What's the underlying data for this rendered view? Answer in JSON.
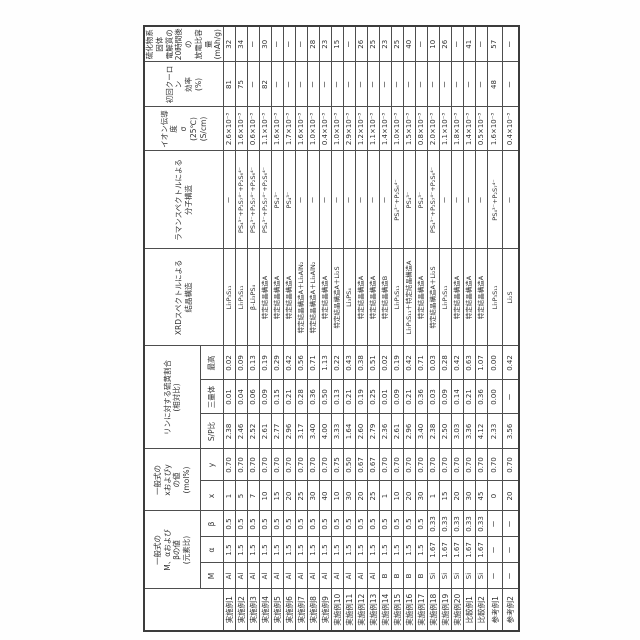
{
  "document": {
    "kind": "patent-table-scan",
    "rotation_deg": -90,
    "background": "#ffffff",
    "line_color": "#4e4e4e"
  },
  "table": {
    "headers": {
      "corner": "",
      "group_m": "一般式の\nM、αおよび\nβの値\n(元素比)",
      "group_xy": "一般式の\nxおよびy\nの値\n(mol%)",
      "group_p": "リンに対する硫黄割合\n(相対比)",
      "group_xrd": "XRDスペクトルによる\n結晶構造",
      "group_raman": "ラマンスペクトルによる\n分子構造",
      "group_sigma": "イオン伝導度\nσ\n(25℃)\n(S/cm)",
      "group_eff": "初回クーロン\n効率\n(%)",
      "group_cap": "硫化物系固体\n電解質の\n20時間後の\n放電比容量\n(mAh/g)",
      "sub": [
        "M",
        "α",
        "β",
        "x",
        "y",
        "S/P比",
        "三量体",
        "最高"
      ]
    },
    "rows": [
      {
        "label": "実施例1",
        "cells": [
          "Al",
          "1.5",
          "0.5",
          "1",
          "0.70",
          "2.38",
          "0.01",
          "0.02",
          "Li₇P₃S₁₁",
          "ー",
          "2.6×10⁻³",
          "81",
          "32"
        ]
      },
      {
        "label": "実施例2",
        "cells": [
          "Al",
          "1.5",
          "0.5",
          "5",
          "0.70",
          "2.46",
          "0.04",
          "0.09",
          "Li₇P₃S₁₁",
          "PS₄³⁻+P₂S₇⁴⁻+P₂S₆⁴⁻",
          "1.6×10⁻³",
          "75",
          "34"
        ]
      },
      {
        "label": "実施例3",
        "cells": [
          "Al",
          "1.5",
          "0.5",
          "7",
          "0.70",
          "2.52",
          "0.06",
          "0.13",
          "β-Li₃PS₄",
          "PS₄³⁻+P₂S₇⁴⁻+P₂S₆⁴⁻",
          "0.6×10⁻³",
          "ー",
          "ー"
        ]
      },
      {
        "label": "実施例4",
        "cells": [
          "Al",
          "1.5",
          "0.5",
          "10",
          "0.70",
          "2.61",
          "0.09",
          "0.19",
          "特定結晶構造A",
          "PS₄³⁻+P₂S₇⁴⁻+P₂S₆⁴⁻",
          "1.1×10⁻³",
          "82",
          "30"
        ]
      },
      {
        "label": "実施例5",
        "cells": [
          "Al",
          "1.5",
          "0.5",
          "15",
          "0.70",
          "2.77",
          "0.15",
          "0.29",
          "特定結晶構造A",
          "PS₄³⁻",
          "1.6×10⁻³",
          "ー",
          "ー"
        ]
      },
      {
        "label": "実施例6",
        "cells": [
          "Al",
          "1.5",
          "0.5",
          "20",
          "0.70",
          "2.96",
          "0.21",
          "0.42",
          "特定結晶構造A",
          "PS₄³⁻",
          "1.7×10⁻³",
          "ー",
          "ー"
        ]
      },
      {
        "label": "実施例7",
        "cells": [
          "Al",
          "1.5",
          "0.5",
          "25",
          "0.70",
          "3.17",
          "0.28",
          "0.56",
          "特定結晶構造A＋Li₃AlN₂",
          "ー",
          "1.6×10⁻³",
          "ー",
          "ー"
        ]
      },
      {
        "label": "実施例8",
        "cells": [
          "Al",
          "1.5",
          "0.5",
          "30",
          "0.70",
          "3.40",
          "0.36",
          "0.71",
          "特定結晶構造A＋Li₃AlN₂",
          "ー",
          "1.0×10⁻³",
          "ー",
          "28"
        ]
      },
      {
        "label": "実施例9",
        "cells": [
          "Al",
          "1.5",
          "0.5",
          "40",
          "0.70",
          "4.00",
          "0.50",
          "1.13",
          "特定結晶構造A",
          "ー",
          "0.4×10⁻³",
          "ー",
          "23"
        ]
      },
      {
        "label": "実施例10",
        "cells": [
          "Al",
          "1.5",
          "0.5",
          "10",
          "0.75",
          "3.33",
          "0.13",
          "0.22",
          "特定結晶構造A＋Li₂S",
          "ー",
          "1.0×10⁻³",
          "ー",
          "15"
        ]
      },
      {
        "label": "実施例11",
        "cells": [
          "Al",
          "1.5",
          "0.5",
          "30",
          "0.50",
          "1.64",
          "0.21",
          "0.43",
          "Li₃PS₄",
          "ー",
          "2.9×10⁻³",
          "ー",
          "ー"
        ]
      },
      {
        "label": "実施例12",
        "cells": [
          "Al",
          "1.5",
          "0.5",
          "20",
          "0.67",
          "2.60",
          "0.19",
          "0.38",
          "特定結晶構造A",
          "ー",
          "1.2×10⁻³",
          "ー",
          "26"
        ]
      },
      {
        "label": "実施例13",
        "cells": [
          "Al",
          "1.5",
          "0.5",
          "25",
          "0.67",
          "2.79",
          "0.25",
          "0.51",
          "特定結晶構造A",
          "ー",
          "1.1×10⁻³",
          "ー",
          "25"
        ]
      },
      {
        "label": "実施例14",
        "cells": [
          "B",
          "1.5",
          "0.5",
          "1",
          "0.70",
          "2.36",
          "0.01",
          "0.02",
          "特定結晶構造B",
          "ー",
          "1.4×10⁻³",
          "ー",
          "23"
        ]
      },
      {
        "label": "実施例15",
        "cells": [
          "B",
          "1.5",
          "0.5",
          "10",
          "0.70",
          "2.61",
          "0.09",
          "0.19",
          "Li₇P₃S₁₁",
          "PS₄³⁻+P₂S₆⁴⁻",
          "1.0×10⁻³",
          "ー",
          "25"
        ]
      },
      {
        "label": "実施例16",
        "cells": [
          "B",
          "1.5",
          "0.5",
          "20",
          "0.70",
          "2.96",
          "0.21",
          "0.42",
          "Li₇P₃S₁₁＋特定結晶構造A",
          "PS₄³⁻",
          "1.5×10⁻³",
          "ー",
          "40"
        ]
      },
      {
        "label": "実施例17",
        "cells": [
          "B",
          "1.5",
          "0.5",
          "30",
          "0.70",
          "3.40",
          "0.36",
          "0.71",
          "特定結晶構造A",
          "PS₄³⁻",
          "0.8×10⁻³",
          "ー",
          "ー"
        ]
      },
      {
        "label": "実施例18",
        "cells": [
          "Si",
          "1.67",
          "0.33",
          "1",
          "0.70",
          "2.38",
          "0.03",
          "0.03",
          "特定結晶構造A＋Li₂S",
          "PS₄³⁻+P₂S₇⁴⁻+P₂S₆⁴⁻",
          "2.0×10⁻³",
          "ー",
          "10"
        ]
      },
      {
        "label": "実施例19",
        "cells": [
          "Si",
          "1.67",
          "0.33",
          "15",
          "0.70",
          "2.50",
          "0.09",
          "0.28",
          "Li₇P₃S₁₁",
          "ー",
          "1.1×10⁻³",
          "ー",
          "26"
        ]
      },
      {
        "label": "実施例20",
        "cells": [
          "Si",
          "1.67",
          "0.33",
          "20",
          "0.70",
          "3.03",
          "0.14",
          "0.42",
          "特定結晶構造A",
          "ー",
          "1.8×10⁻³",
          "ー",
          "ー"
        ]
      },
      {
        "label": "比較例1",
        "cells": [
          "Si",
          "1.67",
          "0.33",
          "30",
          "0.70",
          "3.36",
          "0.21",
          "0.63",
          "特定結晶構造A",
          "ー",
          "1.4×10⁻³",
          "ー",
          "41"
        ]
      },
      {
        "label": "比較例2",
        "cells": [
          "Si",
          "1.67",
          "0.33",
          "45",
          "0.70",
          "4.12",
          "0.36",
          "1.07",
          "特定結晶構造A",
          "ー",
          "0.5×10⁻³",
          "ー",
          "ー"
        ]
      },
      {
        "label": "参考例1",
        "cells": [
          "ー",
          "ー",
          "ー",
          "0",
          "0.70",
          "2.33",
          "0.00",
          "0.00",
          "Li₇P₃S₁₁",
          "PS₄³⁻+P₂S₇⁴⁻",
          "1.6×10⁻³",
          "48",
          "57"
        ]
      },
      {
        "label": "参考例2",
        "cells": [
          "ー",
          "ー",
          "ー",
          "20",
          "0.70",
          "3.56",
          "ー",
          "0.42",
          "Li₂S",
          "ー",
          "0.4×10⁻³",
          "ー",
          "ー"
        ]
      }
    ]
  }
}
